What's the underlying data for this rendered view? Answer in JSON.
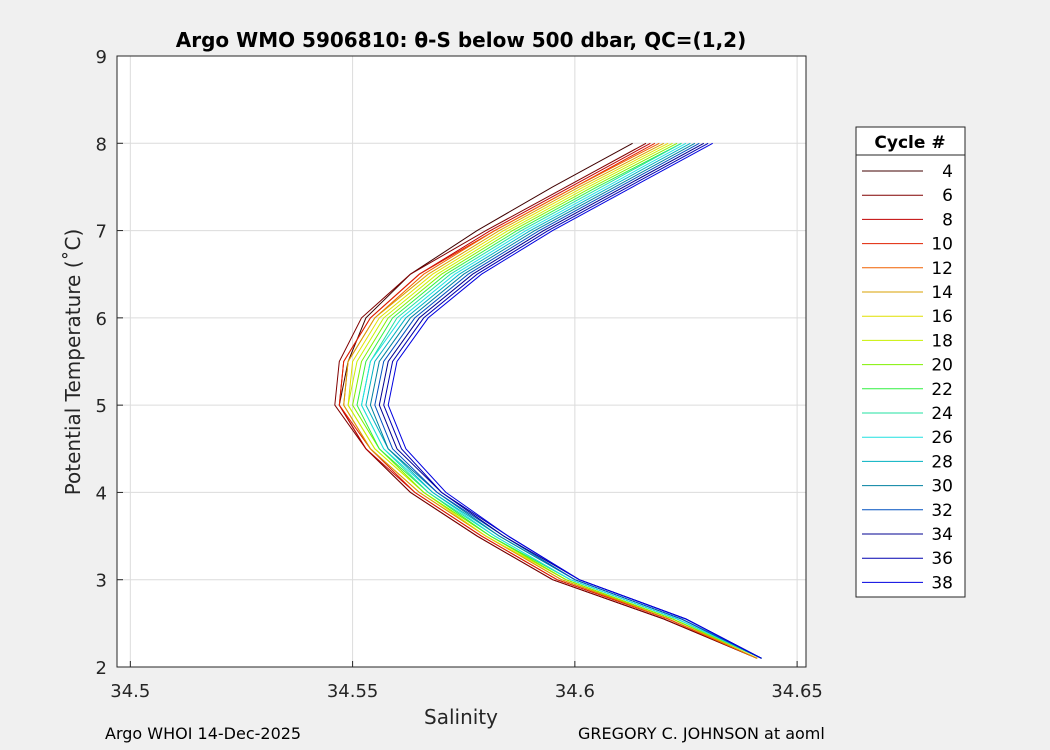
{
  "chart_data": {
    "type": "line",
    "title": "Argo WMO 5906810: θ-S below 500 dbar,  QC=(1,2)",
    "xlabel": "Salinity",
    "ylabel": "Potential Temperature (˚C)",
    "xlim": [
      34.497,
      34.652
    ],
    "ylim": [
      2,
      9
    ],
    "xticks": [
      34.5,
      34.55,
      34.6,
      34.65
    ],
    "xtick_labels": [
      "34.5",
      "34.55",
      "34.6",
      "34.65"
    ],
    "yticks": [
      2,
      3,
      4,
      5,
      6,
      7,
      8,
      9
    ],
    "ytick_labels": [
      "2",
      "3",
      "4",
      "5",
      "6",
      "7",
      "8",
      "9"
    ],
    "grid": true,
    "legend": {
      "title": "Cycle #",
      "placement": "right-outside",
      "entries": [
        "4",
        "6",
        "8",
        "10",
        "12",
        "14",
        "16",
        "18",
        "20",
        "22",
        "24",
        "26",
        "28",
        "30",
        "32",
        "34",
        "36",
        "38"
      ]
    },
    "series": [
      {
        "name": "4",
        "color": "#400000",
        "salinity": [
          34.641,
          34.62,
          34.595,
          34.578,
          34.563,
          34.553,
          34.547,
          34.549,
          34.553,
          34.563,
          34.578,
          34.595,
          34.613
        ],
        "theta": [
          2.1,
          2.55,
          3.0,
          3.5,
          4.0,
          4.5,
          5.0,
          5.5,
          6.0,
          6.5,
          7.0,
          7.5,
          8.0
        ]
      },
      {
        "name": "6",
        "color": "#800000",
        "salinity": [
          34.641,
          34.62,
          34.595,
          34.578,
          34.563,
          34.553,
          34.546,
          34.547,
          34.552,
          34.563,
          34.58,
          34.598,
          34.616
        ],
        "theta": [
          2.1,
          2.55,
          3.0,
          3.5,
          4.0,
          4.5,
          5.0,
          5.5,
          6.0,
          6.5,
          7.0,
          7.5,
          8.0
        ]
      },
      {
        "name": "8",
        "color": "#c00000",
        "salinity": [
          34.641,
          34.621,
          34.596,
          34.579,
          34.564,
          34.553,
          34.547,
          34.548,
          34.554,
          34.565,
          34.581,
          34.599,
          34.617
        ],
        "theta": [
          2.1,
          2.55,
          3.0,
          3.5,
          4.0,
          4.5,
          5.0,
          5.5,
          6.0,
          6.5,
          7.0,
          7.5,
          8.0
        ]
      },
      {
        "name": "10",
        "color": "#e02000",
        "salinity": [
          34.641,
          34.621,
          34.596,
          34.579,
          34.564,
          34.554,
          34.547,
          34.548,
          34.554,
          34.565,
          34.582,
          34.6,
          34.618
        ],
        "theta": [
          2.1,
          2.55,
          3.0,
          3.5,
          4.0,
          4.5,
          5.0,
          5.5,
          6.0,
          6.5,
          7.0,
          7.5,
          8.0
        ]
      },
      {
        "name": "12",
        "color": "#f06000",
        "salinity": [
          34.641,
          34.621,
          34.597,
          34.58,
          34.565,
          34.554,
          34.548,
          34.549,
          34.555,
          34.566,
          34.582,
          34.6,
          34.619
        ],
        "theta": [
          2.1,
          2.55,
          3.0,
          3.5,
          4.0,
          4.5,
          5.0,
          5.5,
          6.0,
          6.5,
          7.0,
          7.5,
          8.0
        ]
      },
      {
        "name": "14",
        "color": "#d8a000",
        "salinity": [
          34.641,
          34.622,
          34.597,
          34.58,
          34.565,
          34.554,
          34.548,
          34.549,
          34.555,
          34.567,
          34.583,
          34.601,
          34.62
        ],
        "theta": [
          2.1,
          2.55,
          3.0,
          3.5,
          4.0,
          4.5,
          5.0,
          5.5,
          6.0,
          6.5,
          7.0,
          7.5,
          8.0
        ]
      },
      {
        "name": "16",
        "color": "#e0e000",
        "salinity": [
          34.642,
          34.622,
          34.598,
          34.58,
          34.566,
          34.555,
          34.549,
          34.55,
          34.556,
          34.568,
          34.584,
          34.602,
          34.621
        ],
        "theta": [
          2.1,
          2.55,
          3.0,
          3.5,
          4.0,
          4.5,
          5.0,
          5.5,
          6.0,
          6.5,
          7.0,
          7.5,
          8.0
        ]
      },
      {
        "name": "18",
        "color": "#c8f000",
        "salinity": [
          34.642,
          34.622,
          34.598,
          34.581,
          34.566,
          34.555,
          34.549,
          34.551,
          34.557,
          34.569,
          34.585,
          34.603,
          34.622
        ],
        "theta": [
          2.1,
          2.55,
          3.0,
          3.5,
          4.0,
          4.5,
          5.0,
          5.5,
          6.0,
          6.5,
          7.0,
          7.5,
          8.0
        ]
      },
      {
        "name": "20",
        "color": "#80f000",
        "salinity": [
          34.642,
          34.622,
          34.598,
          34.581,
          34.566,
          34.556,
          34.55,
          34.552,
          34.558,
          34.57,
          34.586,
          34.604,
          34.623
        ],
        "theta": [
          2.1,
          2.55,
          3.0,
          3.5,
          4.0,
          4.5,
          5.0,
          5.5,
          6.0,
          6.5,
          7.0,
          7.5,
          8.0
        ]
      },
      {
        "name": "22",
        "color": "#30f040",
        "salinity": [
          34.642,
          34.623,
          34.599,
          34.581,
          34.567,
          34.556,
          34.551,
          34.553,
          34.559,
          34.571,
          34.587,
          34.605,
          34.624
        ],
        "theta": [
          2.1,
          2.55,
          3.0,
          3.5,
          4.0,
          4.5,
          5.0,
          5.5,
          6.0,
          6.5,
          7.0,
          7.5,
          8.0
        ]
      },
      {
        "name": "24",
        "color": "#20e0a0",
        "salinity": [
          34.642,
          34.623,
          34.599,
          34.582,
          34.567,
          34.557,
          34.552,
          34.554,
          34.56,
          34.572,
          34.588,
          34.606,
          34.624
        ],
        "theta": [
          2.1,
          2.55,
          3.0,
          3.5,
          4.0,
          4.5,
          5.0,
          5.5,
          6.0,
          6.5,
          7.0,
          7.5,
          8.0
        ]
      },
      {
        "name": "26",
        "color": "#20e0e0",
        "salinity": [
          34.642,
          34.623,
          34.599,
          34.582,
          34.568,
          34.557,
          34.552,
          34.554,
          34.561,
          34.573,
          34.589,
          34.607,
          34.625
        ],
        "theta": [
          2.1,
          2.55,
          3.0,
          3.5,
          4.0,
          4.5,
          5.0,
          5.5,
          6.0,
          6.5,
          7.0,
          7.5,
          8.0
        ]
      },
      {
        "name": "28",
        "color": "#00b0c0",
        "salinity": [
          34.642,
          34.624,
          34.6,
          34.583,
          34.568,
          34.558,
          34.553,
          34.555,
          34.562,
          34.574,
          34.59,
          34.608,
          34.626
        ],
        "theta": [
          2.1,
          2.55,
          3.0,
          3.5,
          4.0,
          4.5,
          5.0,
          5.5,
          6.0,
          6.5,
          7.0,
          7.5,
          8.0
        ]
      },
      {
        "name": "30",
        "color": "#0080a0",
        "salinity": [
          34.642,
          34.624,
          34.6,
          34.583,
          34.569,
          34.558,
          34.554,
          34.556,
          34.563,
          34.575,
          34.591,
          34.609,
          34.627
        ],
        "theta": [
          2.1,
          2.55,
          3.0,
          3.5,
          4.0,
          4.5,
          5.0,
          5.5,
          6.0,
          6.5,
          7.0,
          7.5,
          8.0
        ]
      },
      {
        "name": "32",
        "color": "#0050c0",
        "salinity": [
          34.642,
          34.624,
          34.6,
          34.584,
          34.569,
          34.559,
          34.555,
          34.557,
          34.564,
          34.576,
          34.592,
          34.61,
          34.628
        ],
        "theta": [
          2.1,
          2.55,
          3.0,
          3.5,
          4.0,
          4.5,
          5.0,
          5.5,
          6.0,
          6.5,
          7.0,
          7.5,
          8.0
        ]
      },
      {
        "name": "34",
        "color": "#000090",
        "salinity": [
          34.642,
          34.625,
          34.601,
          34.584,
          34.57,
          34.56,
          34.556,
          34.558,
          34.565,
          34.577,
          34.593,
          34.611,
          34.629
        ],
        "theta": [
          2.1,
          2.55,
          3.0,
          3.5,
          4.0,
          4.5,
          5.0,
          5.5,
          6.0,
          6.5,
          7.0,
          7.5,
          8.0
        ]
      },
      {
        "name": "36",
        "color": "#0000b0",
        "salinity": [
          34.642,
          34.625,
          34.601,
          34.585,
          34.57,
          34.561,
          34.557,
          34.559,
          34.566,
          34.578,
          34.594,
          34.612,
          34.63
        ],
        "theta": [
          2.1,
          2.55,
          3.0,
          3.5,
          4.0,
          4.5,
          5.0,
          5.5,
          6.0,
          6.5,
          7.0,
          7.5,
          8.0
        ]
      },
      {
        "name": "38",
        "color": "#0000e0",
        "salinity": [
          34.642,
          34.625,
          34.601,
          34.585,
          34.571,
          34.562,
          34.558,
          34.56,
          34.567,
          34.579,
          34.595,
          34.613,
          34.631
        ],
        "theta": [
          2.1,
          2.55,
          3.0,
          3.5,
          4.0,
          4.5,
          5.0,
          5.5,
          6.0,
          6.5,
          7.0,
          7.5,
          8.0
        ]
      }
    ]
  },
  "footer": {
    "left": "Argo WHOI 14-Dec-2025",
    "right": "GREGORY C. JOHNSON at aoml"
  }
}
